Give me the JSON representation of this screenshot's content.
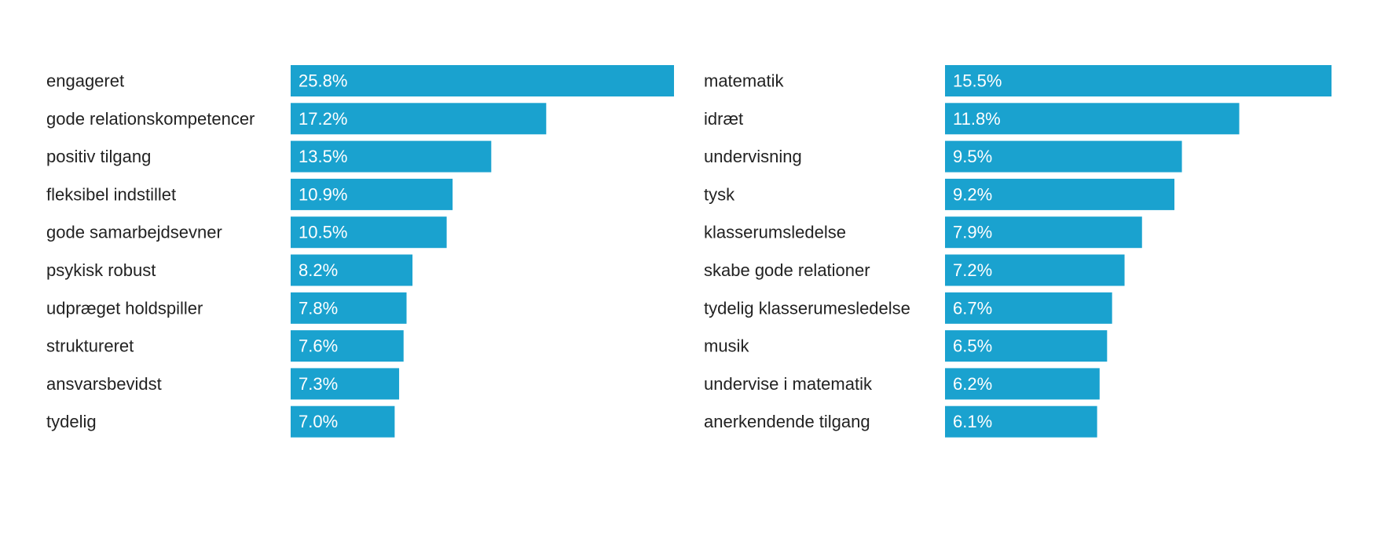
{
  "chart_data": [
    {
      "type": "bar",
      "orientation": "horizontal",
      "bar_color": "#1aa2cf",
      "categories": [
        "engageret",
        "gode relationskompetencer",
        "positiv tilgang",
        "fleksibel indstillet",
        "gode samarbejdsevner",
        "psykisk robust",
        "udpræget holdspiller",
        "struktureret",
        "ansvarsbevidst",
        "tydelig"
      ],
      "values": [
        25.8,
        17.2,
        13.5,
        10.9,
        10.5,
        8.2,
        7.8,
        7.6,
        7.3,
        7.0
      ],
      "value_labels": [
        "25.8%",
        "17.2%",
        "13.5%",
        "10.9%",
        "10.5%",
        "8.2%",
        "7.8%",
        "7.6%",
        "7.3%",
        "7.0%"
      ],
      "xlim": [
        0,
        25.8
      ]
    },
    {
      "type": "bar",
      "orientation": "horizontal",
      "bar_color": "#1aa2cf",
      "categories": [
        "matematik",
        "idræt",
        "undervisning",
        "tysk",
        "klasserumsledelse",
        "skabe gode relationer",
        "tydelig klasserumesledelse",
        "musik",
        "undervise i matematik",
        "anerkendende tilgang"
      ],
      "values": [
        15.5,
        11.8,
        9.5,
        9.2,
        7.9,
        7.2,
        6.7,
        6.5,
        6.2,
        6.1
      ],
      "value_labels": [
        "15.5%",
        "11.8%",
        "9.5%",
        "9.2%",
        "7.9%",
        "7.2%",
        "6.7%",
        "6.5%",
        "6.2%",
        "6.1%"
      ],
      "xlim": [
        0,
        15.5
      ]
    }
  ]
}
